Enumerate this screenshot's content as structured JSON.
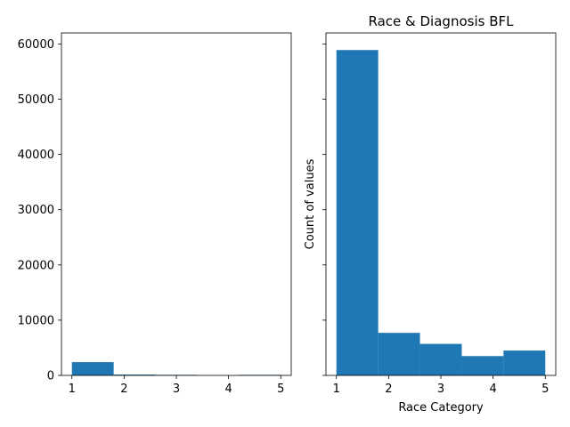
{
  "chart_data": [
    {
      "type": "bar",
      "title": "",
      "xlabel": "",
      "ylabel": "",
      "x_bin_edges": [
        1,
        1.8,
        2.6,
        3.4,
        4.2,
        5
      ],
      "values": [
        2400,
        150,
        100,
        0,
        100
      ],
      "xlim": [
        0.8,
        5.2
      ],
      "ylim": [
        0,
        62000
      ],
      "xticks": [
        1,
        2,
        3,
        4,
        5
      ],
      "yticks": [
        0,
        10000,
        20000,
        30000,
        40000,
        50000,
        60000
      ],
      "ytick_labels": [
        "0",
        "10000",
        "20000",
        "30000",
        "40000",
        "50000",
        "60000"
      ],
      "bar_color": "#1f77b4",
      "grid": false
    },
    {
      "type": "bar",
      "title": "Race & Diagnosis BFL",
      "xlabel": "Race Category",
      "ylabel": "Count of values",
      "x_bin_edges": [
        1,
        1.8,
        2.6,
        3.4,
        4.2,
        5
      ],
      "values": [
        58900,
        7700,
        5700,
        3500,
        4500
      ],
      "xlim": [
        0.8,
        5.2
      ],
      "ylim": [
        0,
        62000
      ],
      "xticks": [
        1,
        2,
        3,
        4,
        5
      ],
      "yticks": [
        0,
        10000,
        20000,
        30000,
        40000,
        50000,
        60000
      ],
      "ytick_labels": [],
      "sharey": true,
      "bar_color": "#1f77b4",
      "grid": false
    }
  ]
}
